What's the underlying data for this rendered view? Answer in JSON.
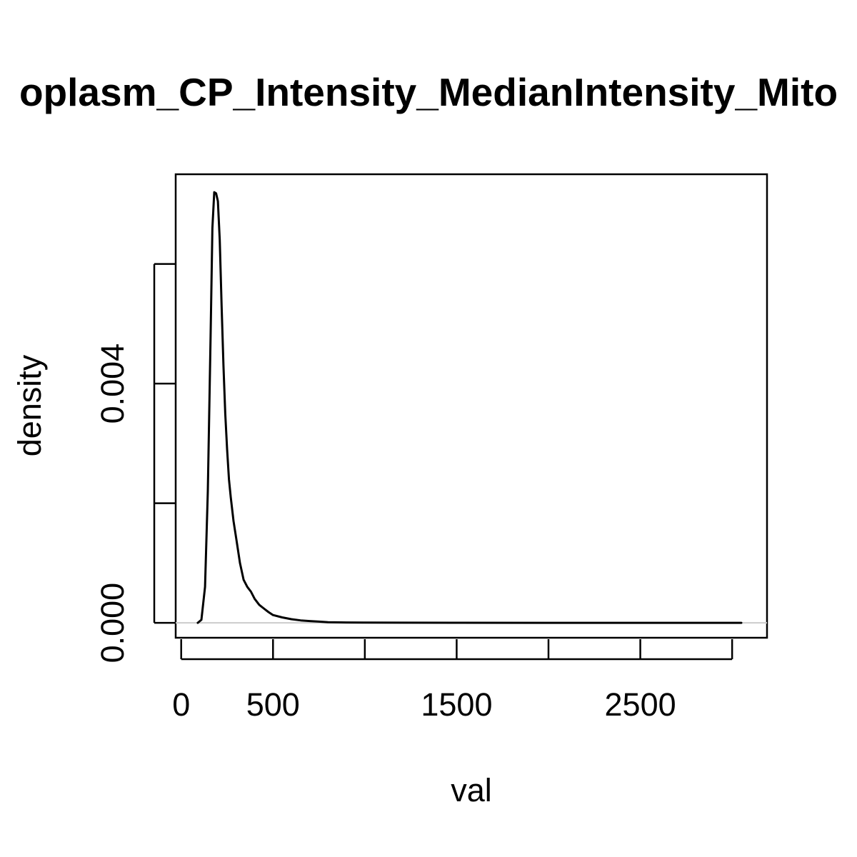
{
  "chart_data": {
    "type": "line",
    "title": "oplasm_CP_Intensity_MedianIntensity_Mito",
    "xlabel": "val",
    "ylabel": "density",
    "xlim": [
      -30,
      3190
    ],
    "ylim": [
      -0.00025,
      0.0075
    ],
    "x_ticks": [
      {
        "value": 0,
        "label": "0"
      },
      {
        "value": 500,
        "label": "500"
      },
      {
        "value": 1000,
        "label": ""
      },
      {
        "value": 1500,
        "label": "1500"
      },
      {
        "value": 2000,
        "label": ""
      },
      {
        "value": 2500,
        "label": "2500"
      },
      {
        "value": 3000,
        "label": ""
      }
    ],
    "y_ticks": [
      {
        "value": 0.0,
        "label": "0.000"
      },
      {
        "value": 0.002,
        "label": ""
      },
      {
        "value": 0.004,
        "label": "0.004"
      },
      {
        "value": 0.006,
        "label": ""
      }
    ],
    "grid": false,
    "baseline": 0,
    "colors": {
      "line": "#000000",
      "baseline": "#cccccc",
      "frame": "#000000"
    },
    "series": [
      {
        "x": [
          90,
          110,
          130,
          145,
          160,
          170,
          180,
          190,
          200,
          210,
          220,
          230,
          240,
          250,
          260,
          270,
          285,
          300,
          320,
          340,
          360,
          380,
          400,
          425,
          450,
          475,
          500,
          550,
          600,
          650,
          700,
          750,
          800,
          900,
          1000,
          1200,
          1500,
          2000,
          2500,
          3050
        ],
        "y": [
          0.0,
          5e-05,
          0.0006,
          0.0022,
          0.0048,
          0.0066,
          0.0072,
          0.00718,
          0.00705,
          0.0064,
          0.0053,
          0.0043,
          0.0035,
          0.0029,
          0.0024,
          0.0021,
          0.0017,
          0.0014,
          0.001,
          0.00072,
          0.0006,
          0.00052,
          0.0004,
          0.0003,
          0.00024,
          0.00018,
          0.00013,
          9e-05,
          6e-05,
          4e-05,
          3e-05,
          2e-05,
          1e-05,
          5e-06,
          3e-06,
          2e-06,
          1e-06,
          0.0,
          0.0,
          0.0
        ]
      }
    ]
  }
}
